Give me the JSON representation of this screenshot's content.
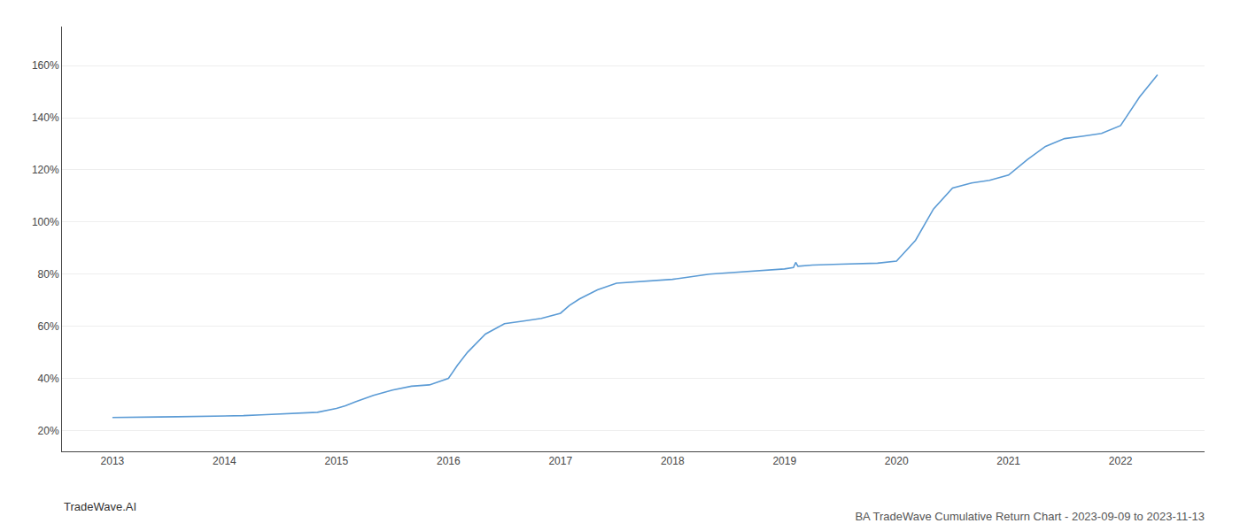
{
  "chart_data": {
    "type": "line",
    "title": "BA TradeWave Cumulative Return Chart - 2023-09-09 to 2023-11-13",
    "annotations": [
      "TradeWave.AI"
    ],
    "color": "#5b9bd5",
    "x": [
      2013.0,
      2013.08,
      2013.17,
      2013.25,
      2013.42,
      2013.58,
      2013.75,
      2013.92,
      2014.0,
      2014.08,
      2014.17,
      2014.33,
      2014.5,
      2014.67,
      2014.83,
      2015.0,
      2015.08,
      2015.17,
      2015.33,
      2015.5,
      2015.67,
      2015.83,
      2016.0,
      2016.08,
      2016.17,
      2016.33,
      2016.5,
      2016.67,
      2016.83,
      2017.0,
      2017.08,
      2017.17,
      2017.33,
      2017.5,
      2017.67,
      2017.83,
      2018.0,
      2018.08,
      2018.17,
      2018.33,
      2018.5,
      2018.67,
      2018.83,
      2019.0,
      2019.08,
      2019.1,
      2019.12,
      2019.25,
      2019.5,
      2019.75,
      2019.83,
      2020.0,
      2020.17,
      2020.33,
      2020.5,
      2020.67,
      2020.83,
      2021.0,
      2021.17,
      2021.33,
      2021.5,
      2021.67,
      2021.83,
      2022.0,
      2022.17,
      2022.33
    ],
    "values": [
      25.0,
      25.0,
      25.1,
      25.1,
      25.2,
      25.3,
      25.4,
      25.5,
      25.6,
      25.6,
      25.7,
      26.0,
      26.3,
      26.5,
      27.0,
      28.5,
      29.5,
      31.0,
      33.5,
      35.5,
      37.0,
      37.5,
      40.0,
      45.0,
      50.0,
      57.0,
      61.0,
      62.0,
      63.0,
      65.0,
      68.0,
      70.5,
      74.0,
      76.5,
      77.0,
      77.5,
      78.0,
      78.5,
      79.0,
      80.0,
      80.5,
      81.0,
      81.5,
      82.0,
      82.5,
      84.5,
      83.0,
      83.5,
      83.8,
      84.0,
      84.2,
      85.0,
      93.0,
      105.0,
      113.0,
      115.0,
      116.0,
      118.0,
      124.0,
      129.0,
      132.0,
      133.0,
      134.0,
      137.0,
      148.0,
      156.5
    ],
    "xlim": [
      2012.55,
      2022.75
    ],
    "xticks": [
      2013,
      2014,
      2015,
      2016,
      2017,
      2018,
      2019,
      2020,
      2021,
      2022
    ],
    "ylim": [
      12,
      175
    ],
    "yticks": [
      {
        "value": 20,
        "label": "20%"
      },
      {
        "value": 40,
        "label": "40%"
      },
      {
        "value": 60,
        "label": "60%"
      },
      {
        "value": 80,
        "label": "80%"
      },
      {
        "value": 100,
        "label": "100%"
      },
      {
        "value": 120,
        "label": "120%"
      },
      {
        "value": 140,
        "label": "140%"
      },
      {
        "value": 160,
        "label": "160%"
      }
    ],
    "grid": "y"
  }
}
